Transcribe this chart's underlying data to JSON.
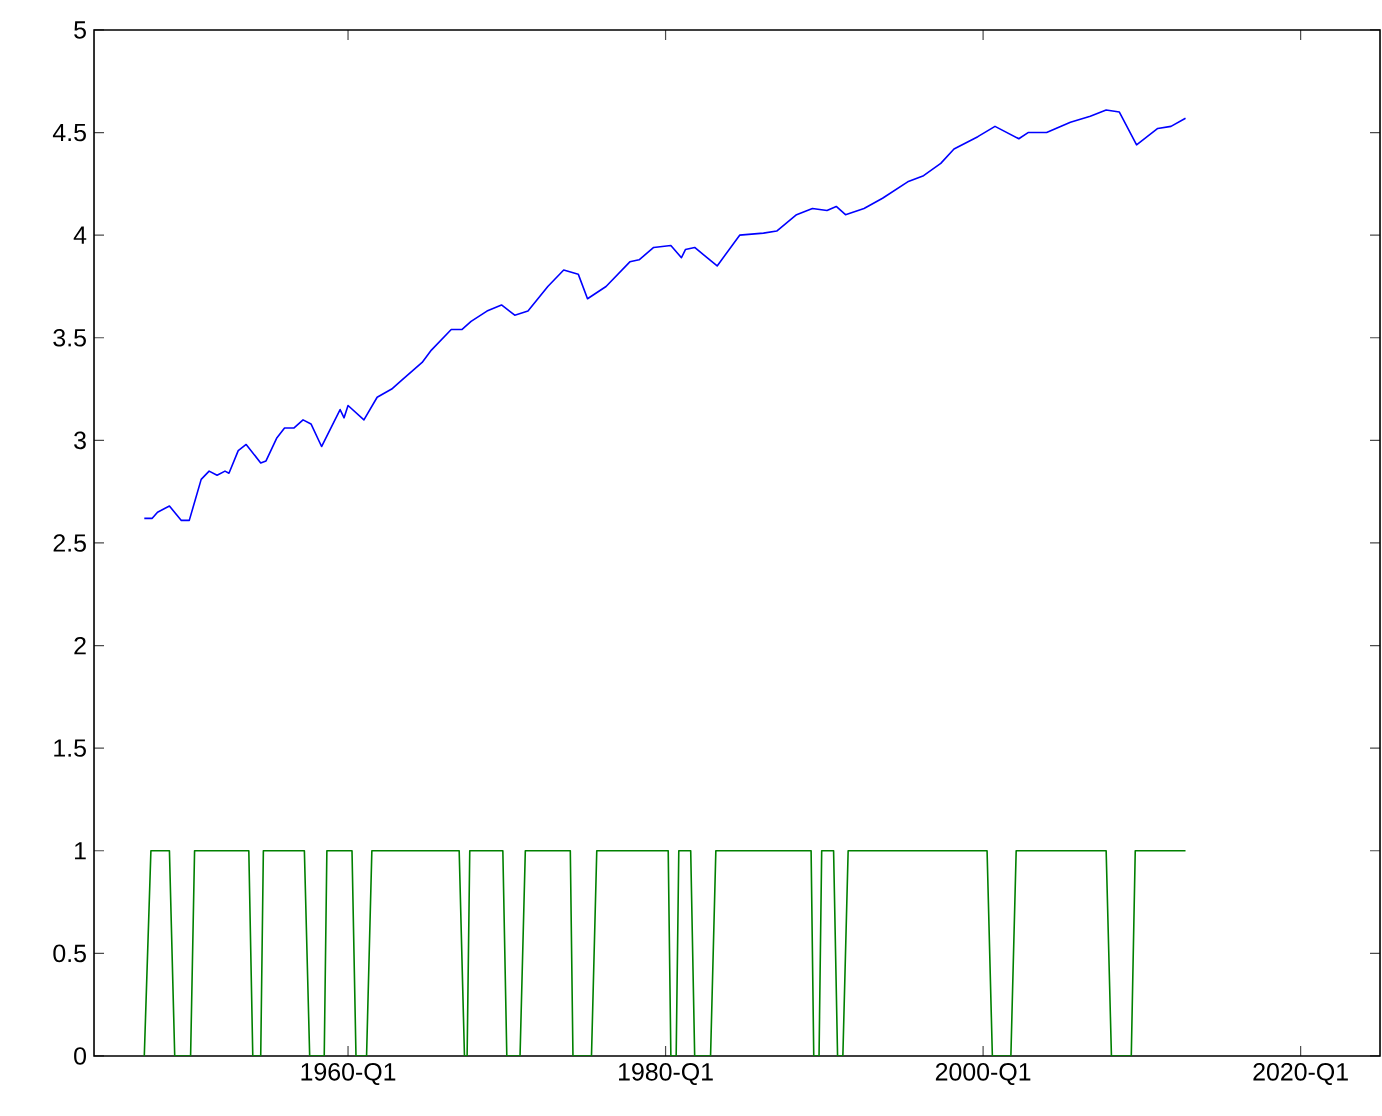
{
  "chart_data": {
    "type": "line",
    "xlim": [
      "1944-01",
      "2025-01"
    ],
    "ylim": [
      0,
      5
    ],
    "xticks": [
      {
        "value": "1960-01",
        "label": "1960-Q1"
      },
      {
        "value": "1980-01",
        "label": "1980-Q1"
      },
      {
        "value": "2000-01",
        "label": "2000-Q1"
      },
      {
        "value": "2020-01",
        "label": "2020-Q1"
      }
    ],
    "yticks": [
      0,
      0.5,
      1,
      1.5,
      2,
      2.5,
      3,
      3.5,
      4,
      4.5,
      5
    ],
    "grid": false,
    "series": [
      {
        "color": "#0000ff",
        "x": [
          "1947-03",
          "1947-09",
          "1948-01",
          "1948-10",
          "1949-07",
          "1950-01",
          "1950-10",
          "1951-04",
          "1951-10",
          "1952-04",
          "1952-07",
          "1953-02",
          "1953-08",
          "1954-07",
          "1954-11",
          "1955-07",
          "1956-01",
          "1956-08",
          "1957-03",
          "1957-09",
          "1958-05",
          "1959-07",
          "1959-10",
          "1960-01",
          "1961-01",
          "1961-11",
          "1962-10",
          "1963-05",
          "1964-09",
          "1965-04",
          "1966-07",
          "1967-03",
          "1967-10",
          "1968-10",
          "1969-09",
          "1970-07",
          "1971-05",
          "1972-08",
          "1973-08",
          "1974-07",
          "1975-02",
          "1976-04",
          "1977-10",
          "1978-05",
          "1979-04",
          "1980-05",
          "1981-01",
          "1981-04",
          "1981-11",
          "1983-04",
          "1984-09",
          "1986-03",
          "1987-01",
          "1988-04",
          "1989-04",
          "1990-03",
          "1990-10",
          "1991-05",
          "1992-07",
          "1993-09",
          "1995-04",
          "1996-04",
          "1997-05",
          "1998-03",
          "1999-09",
          "2000-10",
          "2002-04",
          "2002-11",
          "2004-01",
          "2005-07",
          "2006-10",
          "2007-10",
          "2008-08",
          "2009-09",
          "2011-01",
          "2011-11",
          "2012-10"
        ],
        "values": [
          2.62,
          2.62,
          2.65,
          2.68,
          2.61,
          2.61,
          2.81,
          2.85,
          2.83,
          2.85,
          2.84,
          2.95,
          2.98,
          2.89,
          2.9,
          3.01,
          3.06,
          3.06,
          3.1,
          3.08,
          2.97,
          3.15,
          3.11,
          3.17,
          3.1,
          3.21,
          3.25,
          3.29,
          3.38,
          3.44,
          3.54,
          3.54,
          3.58,
          3.63,
          3.66,
          3.61,
          3.63,
          3.75,
          3.83,
          3.81,
          3.69,
          3.75,
          3.87,
          3.88,
          3.94,
          3.95,
          3.89,
          3.93,
          3.94,
          3.85,
          4.0,
          4.01,
          4.02,
          4.1,
          4.13,
          4.12,
          4.14,
          4.1,
          4.13,
          4.18,
          4.26,
          4.29,
          4.35,
          4.42,
          4.48,
          4.53,
          4.47,
          4.5,
          4.5,
          4.55,
          4.58,
          4.61,
          4.6,
          4.44,
          4.52,
          4.53,
          4.57
        ]
      },
      {
        "color": "#008000",
        "x": [
          "1947-03",
          "1947-08",
          "1948-10",
          "1949-02",
          "1950-02",
          "1950-05",
          "1953-10",
          "1954-01",
          "1954-07",
          "1954-09",
          "1957-04",
          "1957-08",
          "1958-07",
          "1958-09",
          "1960-04",
          "1960-07",
          "1961-03",
          "1961-07",
          "1967-01",
          "1967-05",
          "1967-07",
          "1967-09",
          "1969-10",
          "1970-01",
          "1970-11",
          "1971-03",
          "1974-01",
          "1974-03",
          "1975-05",
          "1975-09",
          "1980-03",
          "1980-05",
          "1980-09",
          "1980-11",
          "1981-08",
          "1981-11",
          "1982-11",
          "1983-03",
          "1989-03",
          "1989-05",
          "1989-09",
          "1989-11",
          "1990-08",
          "1990-11",
          "1991-03",
          "1991-07",
          "2000-04",
          "2000-08",
          "2001-10",
          "2002-02",
          "2007-10",
          "2008-02",
          "2009-05",
          "2009-08",
          "2012-10"
        ],
        "values": [
          0,
          1,
          1,
          0,
          0,
          1,
          1,
          0,
          0,
          1,
          1,
          0,
          0,
          1,
          1,
          0,
          0,
          1,
          1,
          0,
          0,
          1,
          1,
          0,
          0,
          1,
          1,
          0,
          0,
          1,
          1,
          0,
          0,
          1,
          1,
          0,
          0,
          1,
          1,
          0,
          0,
          1,
          1,
          0,
          0,
          1,
          1,
          0,
          0,
          1,
          1,
          0,
          0,
          1,
          1
        ]
      }
    ]
  }
}
